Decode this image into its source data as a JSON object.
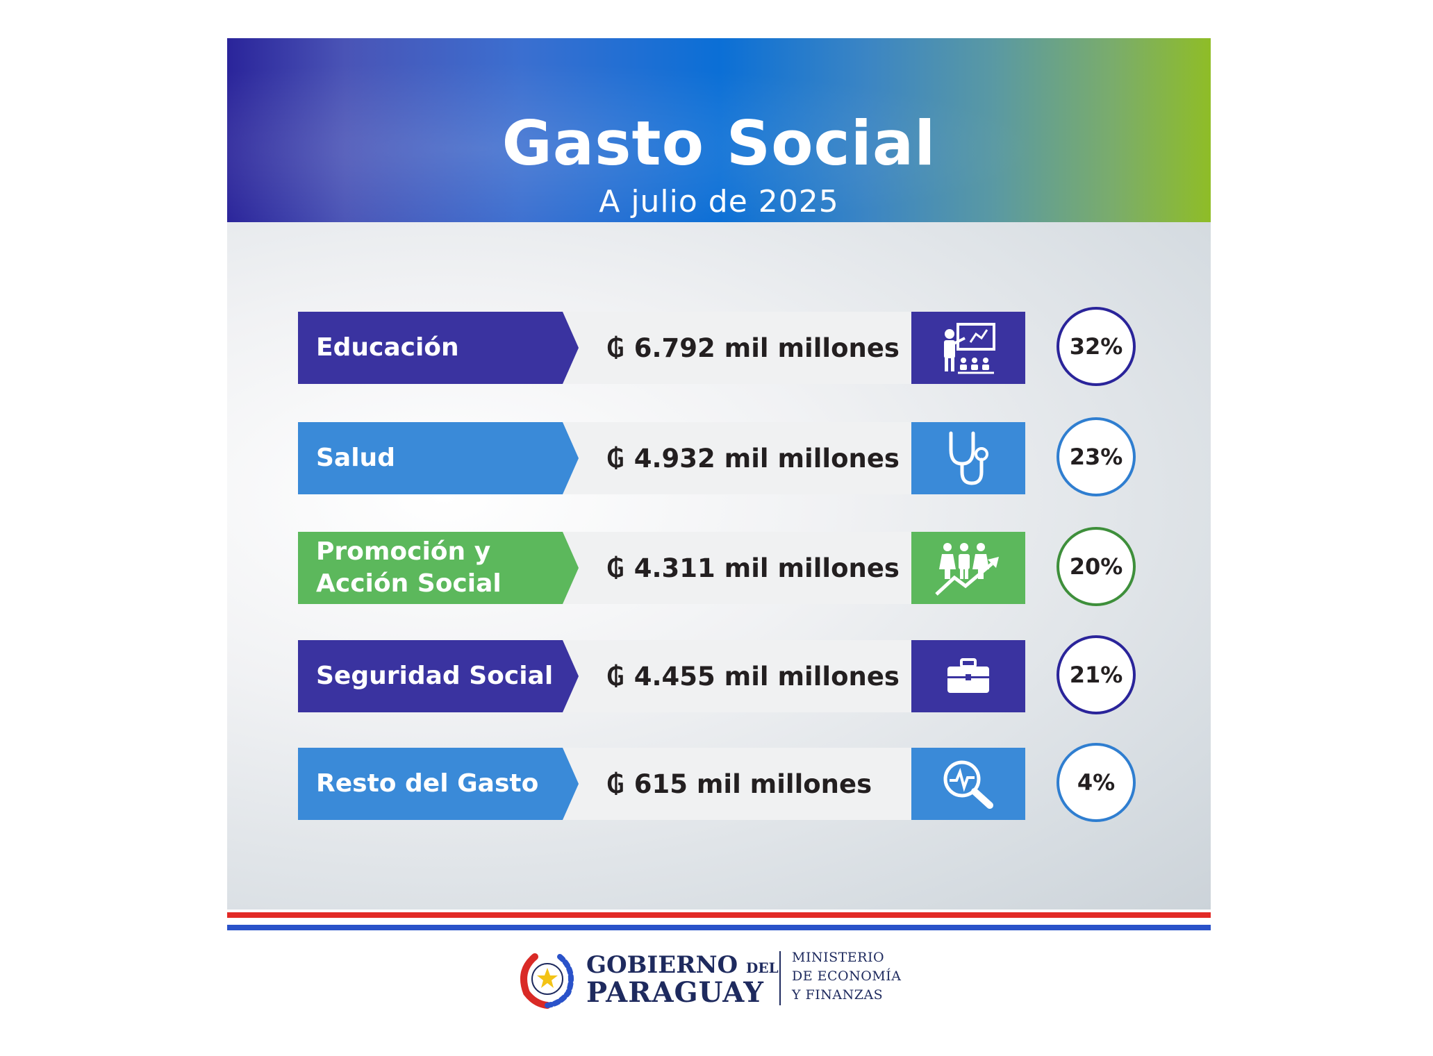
{
  "header": {
    "title": "Gasto Social",
    "subtitle": "A julio de 2025"
  },
  "rows": [
    {
      "label": "Educación",
      "currency": "₲",
      "amount": "6.792 mil millones",
      "percent": "32%",
      "color": "#3a33a0",
      "circle_color": "#2a249a",
      "icon": "teacher-icon"
    },
    {
      "label": "Salud",
      "currency": "₲",
      "amount": "4.932 mil millones",
      "percent": "23%",
      "color": "#3a8ad8",
      "circle_color": "#2f7ed0",
      "icon": "stethoscope-icon"
    },
    {
      "label": "Promoción y Acción Social",
      "label_line1": "Promoción y",
      "label_line2": "Acción Social",
      "currency": "₲",
      "amount": "4.311 mil millones",
      "percent": "20%",
      "color": "#5cb85c",
      "circle_color": "#3e8f3b",
      "icon": "people-growth-icon"
    },
    {
      "label": "Seguridad Social",
      "currency": "₲",
      "amount": "4.455 mil millones",
      "percent": "21%",
      "color": "#3a33a0",
      "circle_color": "#2a249a",
      "icon": "briefcase-icon"
    },
    {
      "label": "Resto del Gasto",
      "currency": "₲",
      "amount": "615 mil millones",
      "percent": "4%",
      "color": "#3a8ad8",
      "circle_color": "#2f7ed0",
      "icon": "magnifier-pulse-icon"
    }
  ],
  "footer": {
    "gov_line1_big": "GOBIERNO",
    "gov_line1_small": "DEL",
    "gov_line2": "PARAGUAY",
    "ministry_line1": "MINISTERIO",
    "ministry_line2": "DE ECONOMÍA",
    "ministry_line3": "Y FINANZAS"
  }
}
